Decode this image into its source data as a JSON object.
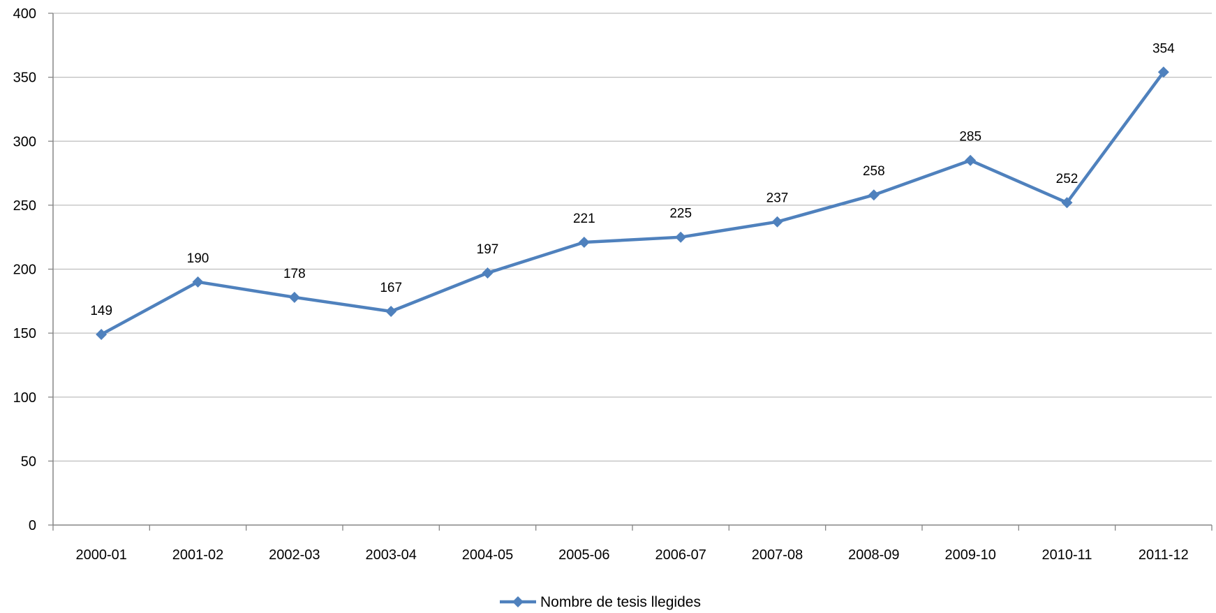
{
  "chart_data": {
    "type": "line",
    "title": "",
    "xlabel": "",
    "ylabel": "",
    "categories": [
      "2000-01",
      "2001-02",
      "2002-03",
      "2003-04",
      "2004-05",
      "2005-06",
      "2006-07",
      "2007-08",
      "2008-09",
      "2009-10",
      "2010-11",
      "2011-12"
    ],
    "series": [
      {
        "name": "Nombre de tesis llegides",
        "values": [
          149,
          190,
          178,
          167,
          197,
          221,
          225,
          237,
          258,
          285,
          252,
          354
        ],
        "color": "#4F81BD",
        "marker": "diamond",
        "data_labels": true
      }
    ],
    "ylim": [
      0,
      400
    ],
    "yticks": [
      0,
      50,
      100,
      150,
      200,
      250,
      300,
      350,
      400
    ],
    "grid": true,
    "legend_position": "bottom"
  }
}
